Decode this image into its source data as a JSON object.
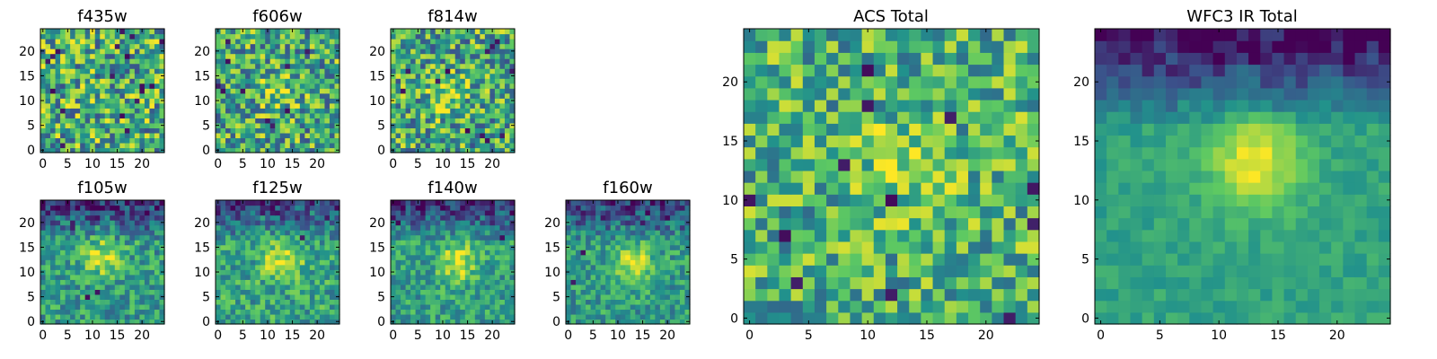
{
  "figure": {
    "background": "#ffffff",
    "colormap": "viridis",
    "colormap_stops": [
      "#440154",
      "#3b528b",
      "#21918c",
      "#5ec962",
      "#fde725"
    ]
  },
  "chart_data": [
    {
      "type": "heatmap",
      "title": "f435w",
      "grid_size": 25,
      "xticks": [
        0,
        5,
        10,
        15,
        20
      ],
      "yticks": [
        0,
        5,
        10,
        15,
        20
      ],
      "xlim": [
        -0.5,
        24.5
      ],
      "ylim": [
        -0.5,
        24.5
      ],
      "source_center": null,
      "source_strength": 0,
      "top_darkening": 0,
      "noise": 0.38,
      "base": 0.62,
      "dark_cells": 18,
      "seed": 11
    },
    {
      "type": "heatmap",
      "title": "f606w",
      "grid_size": 25,
      "xticks": [
        0,
        5,
        10,
        15,
        20
      ],
      "yticks": [
        0,
        5,
        10,
        15,
        20
      ],
      "xlim": [
        -0.5,
        24.5
      ],
      "ylim": [
        -0.5,
        24.5
      ],
      "source_center": [
        12,
        12
      ],
      "source_strength": 0.22,
      "top_darkening": 0,
      "noise": 0.36,
      "base": 0.6,
      "dark_cells": 10,
      "seed": 23
    },
    {
      "type": "heatmap",
      "title": "f814w",
      "grid_size": 25,
      "xticks": [
        0,
        5,
        10,
        15,
        20
      ],
      "yticks": [
        0,
        5,
        10,
        15,
        20
      ],
      "xlim": [
        -0.5,
        24.5
      ],
      "ylim": [
        -0.5,
        24.5
      ],
      "source_center": [
        11,
        11
      ],
      "source_strength": 0.25,
      "top_darkening": 0,
      "noise": 0.36,
      "base": 0.6,
      "dark_cells": 12,
      "seed": 37
    },
    {
      "type": "heatmap",
      "title": "f105w",
      "grid_size": 25,
      "xticks": [
        0,
        5,
        10,
        15,
        20
      ],
      "yticks": [
        0,
        5,
        10,
        15,
        20
      ],
      "xlim": [
        -0.5,
        24.5
      ],
      "ylim": [
        -0.5,
        24.5
      ],
      "source_center": [
        12,
        13
      ],
      "source_strength": 0.35,
      "top_darkening": 0.45,
      "noise": 0.22,
      "base": 0.55,
      "dark_cells": 3,
      "seed": 41
    },
    {
      "type": "heatmap",
      "title": "f125w",
      "grid_size": 25,
      "xticks": [
        0,
        5,
        10,
        15,
        20
      ],
      "yticks": [
        0,
        5,
        10,
        15,
        20
      ],
      "xlim": [
        -0.5,
        24.5
      ],
      "ylim": [
        -0.5,
        24.5
      ],
      "source_center": [
        13,
        12
      ],
      "source_strength": 0.38,
      "top_darkening": 0.4,
      "noise": 0.22,
      "base": 0.58,
      "dark_cells": 3,
      "seed": 53
    },
    {
      "type": "heatmap",
      "title": "f140w",
      "grid_size": 25,
      "xticks": [
        0,
        5,
        10,
        15,
        20
      ],
      "yticks": [
        0,
        5,
        10,
        15,
        20
      ],
      "xlim": [
        -0.5,
        24.5
      ],
      "ylim": [
        -0.5,
        24.5
      ],
      "source_center": [
        13,
        12
      ],
      "source_strength": 0.38,
      "top_darkening": 0.42,
      "noise": 0.2,
      "base": 0.56,
      "dark_cells": 3,
      "seed": 67
    },
    {
      "type": "heatmap",
      "title": "f160w",
      "grid_size": 25,
      "xticks": [
        0,
        5,
        10,
        15,
        20
      ],
      "yticks": [
        0,
        5,
        10,
        15,
        20
      ],
      "xlim": [
        -0.5,
        24.5
      ],
      "ylim": [
        -0.5,
        24.5
      ],
      "source_center": [
        13,
        12
      ],
      "source_strength": 0.4,
      "top_darkening": 0.42,
      "noise": 0.2,
      "base": 0.55,
      "dark_cells": 3,
      "seed": 79
    },
    {
      "type": "heatmap",
      "title": "ACS Total",
      "grid_size": 25,
      "xticks": [
        0,
        5,
        10,
        15,
        20
      ],
      "yticks": [
        0,
        5,
        10,
        15,
        20
      ],
      "xlim": [
        -0.5,
        24.5
      ],
      "ylim": [
        -0.5,
        24.5
      ],
      "source_center": [
        13,
        13
      ],
      "source_strength": 0.2,
      "top_darkening": 0,
      "noise": 0.3,
      "base": 0.64,
      "dark_cells": 12,
      "seed": 97
    },
    {
      "type": "heatmap",
      "title": "WFC3 IR Total",
      "grid_size": 25,
      "xticks": [
        0,
        5,
        10,
        15,
        20
      ],
      "yticks": [
        0,
        5,
        10,
        15,
        20
      ],
      "xlim": [
        -0.5,
        24.5
      ],
      "ylim": [
        -0.5,
        24.5
      ],
      "source_center": [
        13,
        13
      ],
      "source_strength": 0.42,
      "top_darkening": 0.6,
      "noise": 0.08,
      "base": 0.58,
      "dark_cells": 0,
      "seed": 113
    }
  ]
}
